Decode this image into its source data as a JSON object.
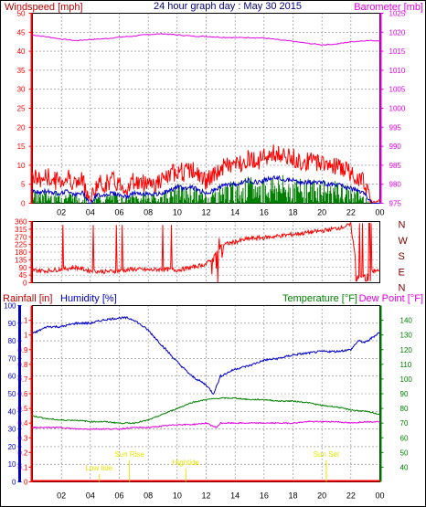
{
  "header": {
    "windspeed_label": "Windspeed [mph]",
    "title": "24 hour graph day : May 30 2015",
    "barometer_label": "Barometer [mb]"
  },
  "wind_panel_labels": {
    "rainfall": "Rainfall [in]",
    "humidity": "Humidity [%]",
    "temperature": "Temperature [°F]",
    "dewpoint": "Dew Point [°F]"
  },
  "colors": {
    "red": "#ff0000",
    "blue": "#0000c8",
    "green": "#008000",
    "magenta": "#e600e6",
    "yellow": "#e6e600",
    "darkred": "#800000",
    "grid": "#000000",
    "title": "#000080"
  },
  "chart_data": [
    {
      "type": "line",
      "title": "24 hour graph day : May 30 2015",
      "xlabel": "",
      "x_ticks": [
        "02",
        "04",
        "06",
        "08",
        "10",
        "12",
        "14",
        "16",
        "18",
        "20",
        "22",
        "00"
      ],
      "x_range_hours": [
        0,
        24
      ],
      "left_axis": {
        "label": "Windspeed [mph]",
        "ylim": [
          0,
          50
        ],
        "ticks": [
          0,
          5,
          10,
          15,
          20,
          25,
          30,
          35,
          40,
          45,
          50
        ]
      },
      "right_axis": {
        "label": "Barometer [mb]",
        "ylim": [
          975,
          1025
        ],
        "ticks": [
          975,
          980,
          985,
          990,
          995,
          1000,
          1005,
          1010,
          1015,
          1020,
          1025
        ]
      },
      "series": [
        {
          "name": "Windspeed [mph]",
          "color": "#ff0000",
          "axis": "left",
          "x": [
            0,
            0.5,
            1,
            1.5,
            2,
            2.5,
            3,
            3.5,
            4,
            4.5,
            5,
            5.5,
            6,
            6.5,
            7,
            7.5,
            8,
            8.5,
            9,
            9.5,
            10,
            10.5,
            11,
            11.5,
            12,
            12.5,
            13,
            13.5,
            14,
            14.5,
            15,
            15.5,
            16,
            16.5,
            17,
            17.5,
            18,
            18.5,
            19,
            19.5,
            20,
            20.5,
            21,
            21.5,
            22,
            22.5,
            23,
            23.5,
            24
          ],
          "y": [
            6,
            5,
            6,
            5,
            5,
            6,
            4,
            5,
            0,
            4,
            4,
            5,
            4,
            3,
            5,
            4,
            5,
            4,
            5,
            6,
            8,
            7,
            8,
            6,
            5,
            6,
            8,
            9,
            9,
            10,
            11,
            10,
            11,
            12,
            12,
            11,
            11,
            10,
            10,
            10,
            10,
            9,
            9,
            8,
            7,
            6,
            4,
            0,
            0
          ]
        },
        {
          "name": "Barometer [mb]",
          "color": "#e600e6",
          "axis": "right",
          "x": [
            0,
            1,
            2,
            3,
            4,
            5,
            6,
            7,
            8,
            9,
            10,
            11,
            12,
            13,
            14,
            15,
            16,
            17,
            18,
            19,
            20,
            21,
            22,
            23,
            24
          ],
          "y": [
            1019.3,
            1018.8,
            1018.2,
            1017.8,
            1018.1,
            1018.3,
            1018.7,
            1019.0,
            1019.4,
            1019.6,
            1019.3,
            1019.0,
            1018.9,
            1018.7,
            1018.6,
            1018.6,
            1018.5,
            1018.0,
            1017.6,
            1017.1,
            1016.7,
            1016.9,
            1017.5,
            1017.8,
            1017.8
          ]
        }
      ]
    },
    {
      "type": "line",
      "title": "",
      "xlabel": "",
      "x_ticks": [
        "02",
        "04",
        "06",
        "08",
        "10",
        "12",
        "14",
        "16",
        "18",
        "20",
        "22",
        "00"
      ],
      "left_axis": {
        "label": "",
        "ylim": [
          0,
          360
        ],
        "ticks": [
          0,
          45,
          90,
          135,
          180,
          225,
          270,
          315,
          360
        ]
      },
      "right_axis": {
        "label": "",
        "ticks": [
          "N",
          "W",
          "S",
          "E",
          "N"
        ]
      },
      "series": [
        {
          "name": "Wind direction",
          "color": "#ff0000",
          "axis": "left",
          "x": [
            0,
            1,
            2,
            3,
            4,
            5,
            6,
            7,
            8,
            9,
            10,
            11,
            12,
            12.5,
            13,
            14,
            15,
            16,
            17,
            18,
            19,
            20,
            21,
            22,
            22.5,
            23,
            23.5,
            24
          ],
          "y": [
            75,
            70,
            80,
            90,
            70,
            65,
            70,
            80,
            75,
            80,
            75,
            90,
            110,
            150,
            220,
            240,
            260,
            265,
            275,
            285,
            295,
            305,
            320,
            340,
            20,
            50,
            70,
            70
          ]
        }
      ]
    },
    {
      "type": "line",
      "title": "",
      "xlabel": "",
      "x_ticks": [
        "02",
        "04",
        "06",
        "08",
        "10",
        "12",
        "14",
        "16",
        "18",
        "20",
        "22",
        "00"
      ],
      "left_axis_outer": {
        "label": "Rainfall [in]",
        "ylim": [
          0,
          1.2
        ],
        "ticks": [
          0,
          0.1,
          0.2,
          0.3,
          0.4,
          0.5,
          0.6,
          0.7,
          0.8,
          0.9,
          1,
          1.1
        ]
      },
      "left_axis_inner": {
        "label": "Humidity [%]",
        "ylim": [
          0,
          100
        ],
        "ticks": [
          0,
          10,
          20,
          30,
          40,
          50,
          60,
          70,
          80,
          90,
          100
        ]
      },
      "right_axis": {
        "label": "Temperature [°F]",
        "ylim": [
          30,
          150
        ],
        "ticks": [
          40,
          50,
          60,
          70,
          80,
          90,
          100,
          110,
          120,
          130,
          140
        ]
      },
      "annotations": [
        {
          "text": "Low tide",
          "x": 4.6
        },
        {
          "text": "Sun Rise",
          "x": 6.7
        },
        {
          "text": "Hightide",
          "x": 10.6
        },
        {
          "text": "Sun Set",
          "x": 20.3
        }
      ],
      "series": [
        {
          "name": "Humidity [%]",
          "color": "#0000c8",
          "axis": "inner",
          "x": [
            0,
            1,
            2,
            3,
            4,
            5,
            6,
            6.5,
            7,
            8,
            9,
            10,
            11,
            12,
            12.5,
            13,
            14,
            15,
            16,
            17,
            18,
            19,
            20,
            21,
            22,
            22.5,
            23,
            24
          ],
          "y": [
            84,
            88,
            88,
            90,
            90,
            92,
            93,
            93,
            92,
            86,
            77,
            68,
            60,
            55,
            50,
            60,
            64,
            66,
            69,
            70,
            72,
            73,
            74,
            74,
            75,
            80,
            79,
            85
          ]
        },
        {
          "name": "Temperature [°F]",
          "color": "#008000",
          "axis": "right",
          "x": [
            0,
            1,
            2,
            3,
            4,
            5,
            6,
            7,
            8,
            9,
            10,
            11,
            12,
            13,
            14,
            15,
            16,
            17,
            18,
            19,
            20,
            21,
            22,
            23,
            24
          ],
          "y": [
            75,
            73,
            72,
            72,
            71,
            71,
            70,
            70,
            72,
            76,
            80,
            84,
            86,
            87,
            87,
            86,
            86,
            85,
            85,
            84,
            82,
            81,
            79,
            78,
            76
          ]
        },
        {
          "name": "Dew Point [°F]",
          "color": "#e600e6",
          "axis": "right",
          "x": [
            0,
            1,
            2,
            3,
            4,
            5,
            6,
            7,
            8,
            9,
            10,
            11,
            12,
            12.7,
            13,
            14,
            15,
            16,
            17,
            18,
            19,
            20,
            21,
            22,
            23,
            24
          ],
          "y": [
            67,
            67,
            67,
            66,
            66,
            66,
            66,
            67,
            67,
            68,
            69,
            69,
            70,
            67,
            70,
            70,
            70,
            70,
            70,
            70,
            71,
            71,
            71,
            70,
            71,
            71
          ]
        },
        {
          "name": "Rainfall [in]",
          "color": "#ff0000",
          "axis": "outer",
          "x": [
            0,
            24
          ],
          "y": [
            0,
            0
          ]
        }
      ]
    }
  ]
}
